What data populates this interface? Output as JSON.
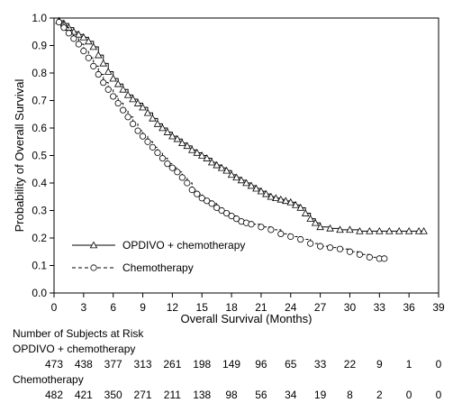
{
  "chart_data": {
    "type": "line",
    "title": "",
    "xlabel": "Overall Survival (Months)",
    "ylabel": "Probability of Overall Survival",
    "xlim": [
      0,
      39
    ],
    "ylim": [
      0,
      1.0
    ],
    "x_ticks": [
      "0",
      "3",
      "6",
      "9",
      "12",
      "15",
      "18",
      "21",
      "24",
      "27",
      "30",
      "33",
      "36",
      "39"
    ],
    "y_ticks": [
      "0.0",
      "0.1",
      "0.2",
      "0.3",
      "0.4",
      "0.5",
      "0.6",
      "0.7",
      "0.8",
      "0.9",
      "1.0"
    ],
    "grid": false,
    "legend_position": "bottom-left",
    "series": [
      {
        "name": "OPDIVO + chemotherapy",
        "marker": "triangle",
        "line_style": "solid",
        "color": "#000000",
        "x": [
          0,
          0.5,
          1,
          1.5,
          2,
          2.5,
          3,
          3.5,
          4,
          4.5,
          5,
          5.5,
          6,
          6.5,
          7,
          7.5,
          8,
          8.5,
          9,
          9.5,
          10,
          10.5,
          11,
          11.5,
          12,
          12.5,
          13,
          13.5,
          14,
          14.5,
          15,
          15.5,
          16,
          16.5,
          17,
          17.5,
          18,
          18.5,
          19,
          19.5,
          20,
          20.5,
          21,
          21.5,
          22,
          22.5,
          23,
          23.5,
          24,
          24.5,
          25,
          25.5,
          26,
          26.5,
          27,
          28,
          29,
          30,
          31,
          32,
          33,
          34,
          35,
          36,
          37,
          37.5
        ],
        "y": [
          1.0,
          0.99,
          0.98,
          0.965,
          0.95,
          0.94,
          0.93,
          0.915,
          0.895,
          0.865,
          0.835,
          0.805,
          0.78,
          0.76,
          0.74,
          0.72,
          0.705,
          0.69,
          0.675,
          0.655,
          0.635,
          0.615,
          0.6,
          0.585,
          0.57,
          0.56,
          0.545,
          0.535,
          0.52,
          0.51,
          0.5,
          0.49,
          0.475,
          0.465,
          0.455,
          0.445,
          0.43,
          0.42,
          0.41,
          0.4,
          0.39,
          0.38,
          0.37,
          0.36,
          0.35,
          0.345,
          0.34,
          0.335,
          0.33,
          0.32,
          0.31,
          0.29,
          0.27,
          0.255,
          0.24,
          0.235,
          0.23,
          0.23,
          0.225,
          0.225,
          0.225,
          0.225,
          0.225,
          0.225,
          0.225,
          0.225
        ]
      },
      {
        "name": "Chemotherapy",
        "marker": "circle",
        "line_style": "dashed",
        "color": "#000000",
        "x": [
          0,
          0.5,
          1,
          1.5,
          2,
          2.5,
          3,
          3.5,
          4,
          4.5,
          5,
          5.5,
          6,
          6.5,
          7,
          7.5,
          8,
          8.5,
          9,
          9.5,
          10,
          10.5,
          11,
          11.5,
          12,
          12.5,
          13,
          13.5,
          14,
          14.5,
          15,
          15.5,
          16,
          16.5,
          17,
          17.5,
          18,
          18.5,
          19,
          19.5,
          20,
          21,
          22,
          23,
          24,
          25,
          26,
          27,
          28,
          29,
          30,
          31,
          32,
          33,
          33.5
        ],
        "y": [
          1.0,
          0.985,
          0.965,
          0.945,
          0.925,
          0.905,
          0.88,
          0.855,
          0.825,
          0.795,
          0.765,
          0.74,
          0.715,
          0.69,
          0.665,
          0.64,
          0.615,
          0.59,
          0.57,
          0.55,
          0.53,
          0.51,
          0.49,
          0.47,
          0.455,
          0.44,
          0.42,
          0.4,
          0.375,
          0.36,
          0.345,
          0.335,
          0.325,
          0.31,
          0.3,
          0.29,
          0.28,
          0.27,
          0.26,
          0.255,
          0.25,
          0.24,
          0.23,
          0.215,
          0.205,
          0.195,
          0.18,
          0.17,
          0.165,
          0.16,
          0.15,
          0.14,
          0.13,
          0.125,
          0.125
        ]
      }
    ],
    "risk_table": {
      "title": "Number of Subjects at Risk",
      "times": [
        0,
        3,
        6,
        9,
        12,
        15,
        18,
        21,
        24,
        27,
        30,
        33,
        36,
        39
      ],
      "rows": [
        {
          "label": "OPDIVO + chemotherapy",
          "values": [
            "473",
            "438",
            "377",
            "313",
            "261",
            "198",
            "149",
            "96",
            "65",
            "33",
            "22",
            "9",
            "1",
            "0"
          ]
        },
        {
          "label": "Chemotherapy",
          "values": [
            "482",
            "421",
            "350",
            "271",
            "211",
            "138",
            "98",
            "56",
            "34",
            "19",
            "8",
            "2",
            "0",
            "0"
          ]
        }
      ]
    }
  }
}
